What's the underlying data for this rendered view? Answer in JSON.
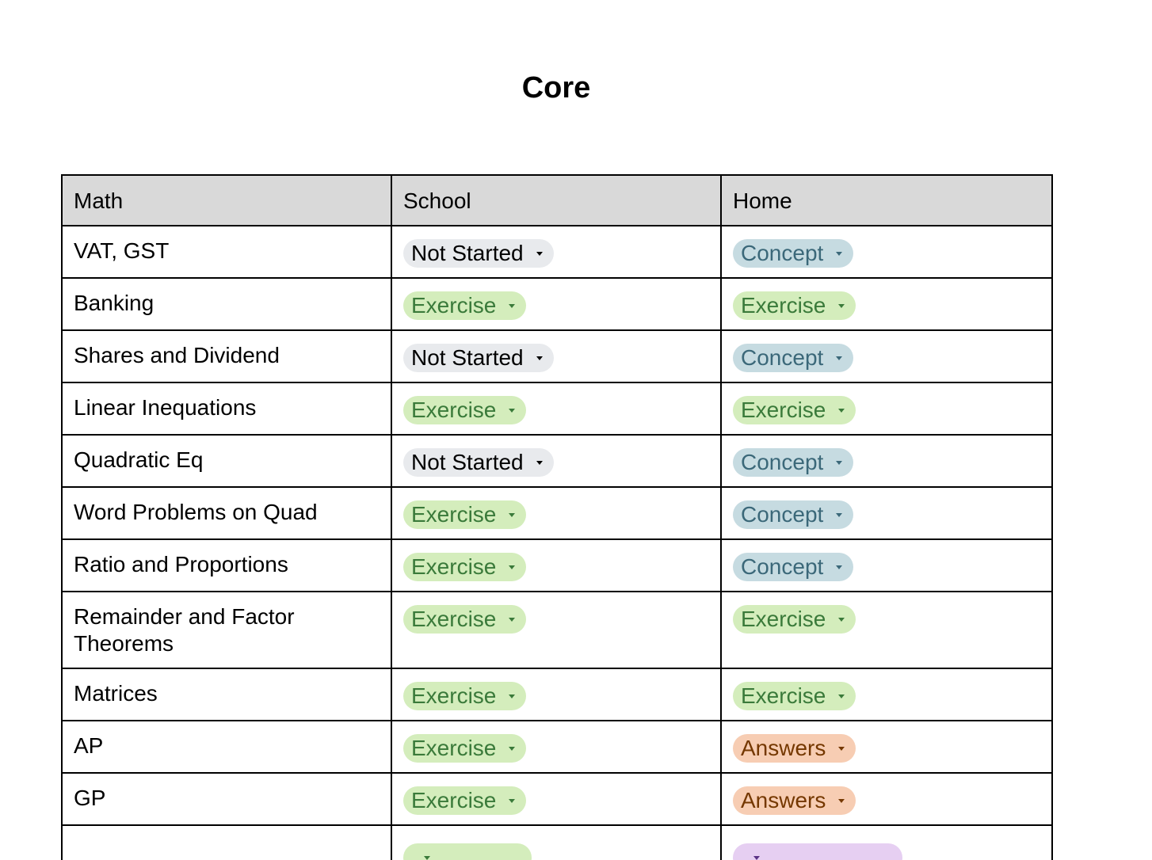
{
  "title": "Core",
  "table": {
    "headers": [
      "Math",
      "School",
      "Home"
    ],
    "rows": [
      {
        "topic": "VAT, GST",
        "school": "Not Started",
        "home": "Concept"
      },
      {
        "topic": "Banking",
        "school": "Exercise",
        "home": "Exercise"
      },
      {
        "topic": "Shares and Dividend",
        "school": "Not Started",
        "home": "Concept"
      },
      {
        "topic": "Linear Inequations",
        "school": "Exercise",
        "home": "Exercise"
      },
      {
        "topic": "Quadratic Eq",
        "school": "Not Started",
        "home": "Concept"
      },
      {
        "topic": "Word Problems on Quad",
        "school": "Exercise",
        "home": "Concept"
      },
      {
        "topic": "Ratio and Proportions",
        "school": "Exercise",
        "home": "Concept"
      },
      {
        "topic": "Remainder and Factor Theorems",
        "school": "Exercise",
        "home": "Exercise"
      },
      {
        "topic": "Matrices",
        "school": "Exercise",
        "home": "Exercise"
      },
      {
        "topic": "AP",
        "school": "Exercise",
        "home": "Answers"
      },
      {
        "topic": "GP",
        "school": "Exercise",
        "home": "Answers"
      },
      {
        "topic": "",
        "school": "",
        "home": ""
      }
    ]
  },
  "chip_colors": {
    "Not Started": "#e8eaed",
    "Exercise": "#d4edbc",
    "Concept": "#c6dbe1",
    "Answers": "#f7cdb3"
  }
}
